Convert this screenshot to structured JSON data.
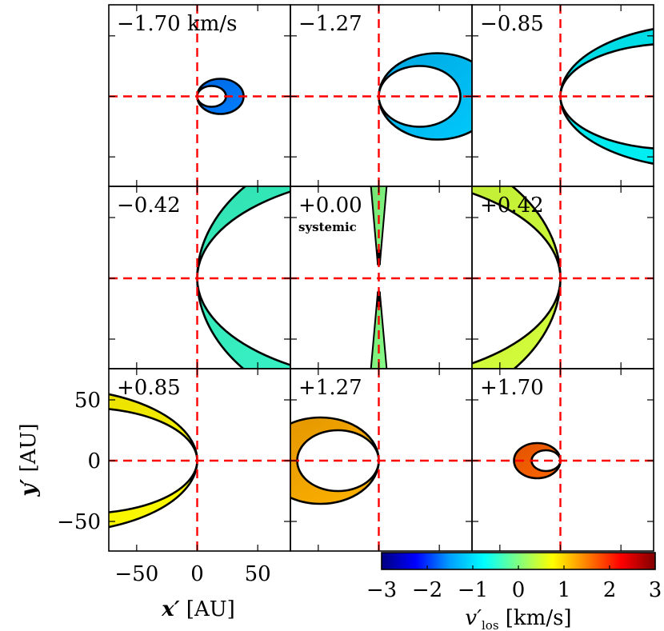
{
  "chart_data": {
    "type": "channel-map",
    "grid": {
      "rows": 3,
      "cols": 3
    },
    "panels": [
      {
        "label": "−1.70 km/s",
        "velocity": -1.7,
        "shape": "crescent",
        "outer_rx": 29,
        "outer_ry": 22,
        "inner_rx": 18,
        "inner_ry": 13,
        "open_side": "left"
      },
      {
        "label": "−1.27",
        "velocity": -1.27,
        "shape": "crescent",
        "outer_rx": 73,
        "outer_ry": 54,
        "inner_rx": 51,
        "inner_ry": 38,
        "open_side": "left"
      },
      {
        "label": "−0.85",
        "velocity": -0.85,
        "shape": "crescent",
        "outer_rx": 180,
        "outer_ry": 90,
        "inner_rx": 140,
        "inner_ry": 66,
        "open_side": "left"
      },
      {
        "label": "−0.42",
        "velocity": -0.42,
        "shape": "crescent",
        "outer_rx": 260,
        "outer_ry": 180,
        "inner_rx": 260,
        "inner_ry": 130,
        "open_side": "left"
      },
      {
        "label": "+0.00",
        "sublabel": "systemic",
        "velocity": 0.0,
        "shape": "thin-lobes"
      },
      {
        "label": "+0.42",
        "velocity": 0.42,
        "shape": "crescent",
        "outer_rx": 260,
        "outer_ry": 180,
        "inner_rx": 260,
        "inner_ry": 130,
        "open_side": "right"
      },
      {
        "label": "+0.85",
        "velocity": 0.85,
        "shape": "crescent",
        "outer_rx": 180,
        "outer_ry": 90,
        "inner_rx": 140,
        "inner_ry": 66,
        "open_side": "right"
      },
      {
        "label": "+1.27",
        "velocity": 1.27,
        "shape": "crescent",
        "outer_rx": 73,
        "outer_ry": 54,
        "inner_rx": 51,
        "inner_ry": 38,
        "open_side": "right"
      },
      {
        "label": "+1.70",
        "velocity": 1.7,
        "shape": "crescent",
        "outer_rx": 29,
        "outer_ry": 22,
        "inner_rx": 18,
        "inner_ry": 13,
        "open_side": "right"
      }
    ],
    "xlim": [
      -75,
      75
    ],
    "ylim": [
      -75,
      75
    ],
    "xticks": [
      -50,
      0,
      50
    ],
    "yticks": [
      -50,
      0,
      50
    ],
    "xlabel": {
      "var": "x′",
      "unit": "[AU]"
    },
    "ylabel": {
      "var": "y′",
      "unit": "[AU]"
    },
    "colorbar": {
      "range": [
        -3,
        3
      ],
      "ticks": [
        -3,
        -2,
        -1,
        0,
        1,
        2,
        3
      ],
      "label_var": "v′",
      "label_sub": "los",
      "label_unit": "[km/s]",
      "colormap": [
        "#000080",
        "#0000ff",
        "#00a0ff",
        "#00ffff",
        "#80ff80",
        "#ffff00",
        "#ff8000",
        "#ff0000",
        "#800000"
      ]
    },
    "crosshair_color": "#ff0000",
    "grid_lines": false
  }
}
